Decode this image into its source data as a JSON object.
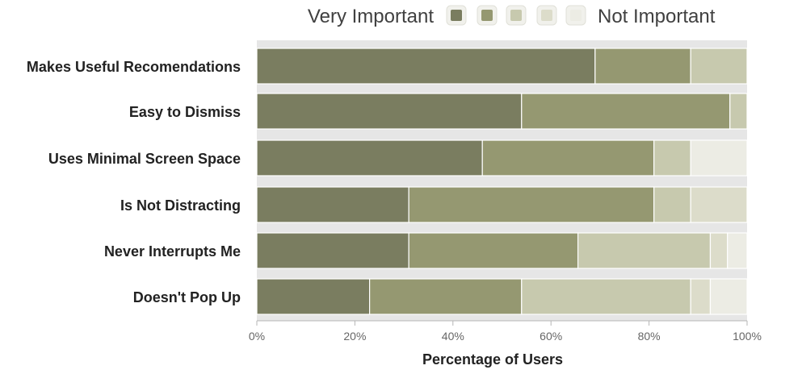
{
  "chart_data": {
    "type": "bar",
    "orientation": "horizontal",
    "stacked": true,
    "title": "",
    "legend": {
      "placement": "top",
      "left_label": "Very Important",
      "right_label": "Not Important",
      "entries": [
        {
          "key": "level-1",
          "color": "#7a7d60"
        },
        {
          "key": "level-2",
          "color": "#959871"
        },
        {
          "key": "level-3",
          "color": "#c7c9ae"
        },
        {
          "key": "level-4",
          "color": "#dcdcca"
        },
        {
          "key": "level-5",
          "color": "#ecece4"
        }
      ]
    },
    "categories": [
      "Makes Useful Recomendations",
      "Easy to Dismiss",
      "Uses Minimal Screen Space",
      "Is Not Distracting",
      "Never Interrupts Me",
      "Doesn't Pop Up"
    ],
    "series": [
      {
        "values": [
          69,
          54,
          46,
          31,
          31,
          23
        ]
      },
      {
        "values": [
          19.5,
          42.5,
          35,
          50,
          34.5,
          31
        ]
      },
      {
        "values": [
          11.5,
          3.5,
          7.5,
          7.5,
          27,
          34.5
        ]
      },
      {
        "values": [
          0,
          0,
          0,
          11.5,
          3.5,
          4
        ]
      },
      {
        "values": [
          0,
          0,
          11.5,
          0,
          4,
          7.5
        ]
      }
    ],
    "xlim": [
      0,
      100
    ],
    "xticks": [
      "0%",
      "20%",
      "40%",
      "60%",
      "80%",
      "100%"
    ],
    "xlabel": "Percentage of Users",
    "ylabel": "",
    "grid": false
  }
}
